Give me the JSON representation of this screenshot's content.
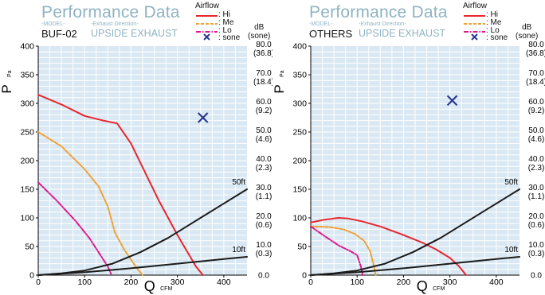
{
  "header": {
    "title": "Performance Data",
    "model_caption": "-MODEL-",
    "exhaust_caption": "-Exhaust Direction-",
    "exhaust_value": "UPSIDE EXHAUST",
    "airflow_title": "Airflow",
    "legend": [
      {
        "key": "hi",
        "label": ": Hi"
      },
      {
        "key": "me",
        "label": ": Me"
      },
      {
        "key": "lo",
        "label": ": Lo"
      },
      {
        "key": "sone",
        "label": ": sone"
      }
    ],
    "db_label": "dB",
    "sone_label": "(sone)"
  },
  "colors": {
    "hi": "#e8262d",
    "me": "#f0a030",
    "lo": "#e0188c",
    "duct": "#1a1a1a",
    "sone_marker": "#2b3990",
    "plot_bg": "#d9e8f3",
    "grid": "#ffffff",
    "title": "#8fb3c2"
  },
  "chart_data": [
    {
      "type": "line",
      "model": "BUF-02",
      "xlabel": "Q",
      "xunit": "CFM",
      "ylabel": "P",
      "yunit": "Pa",
      "xlim": [
        0,
        450
      ],
      "ylim": [
        0,
        400
      ],
      "x_ticks": [
        "0",
        "100",
        "200",
        "300",
        "400"
      ],
      "y_ticks": [
        "0",
        "50",
        "100",
        "150",
        "200",
        "250",
        "300",
        "350",
        "400"
      ],
      "right_ticks": [
        "0.0",
        "10.0\n(0.3)",
        "20.0\n(0.6)",
        "30.0\n(1.1)",
        "40.0\n(2.3)",
        "50.0\n(4.6)",
        "60.0\n(9.2)",
        "70.0\n(18.4)",
        "80.0\n(36.8)"
      ],
      "grid": true,
      "series": [
        {
          "name": "Hi",
          "key": "hi",
          "style": "solid",
          "x": [
            0,
            50,
            100,
            140,
            170,
            200,
            230,
            260,
            300,
            340,
            355
          ],
          "y": [
            315,
            298,
            278,
            270,
            265,
            230,
            180,
            130,
            70,
            15,
            0
          ]
        },
        {
          "name": "Me",
          "key": "me",
          "style": "dashed",
          "x": [
            0,
            50,
            100,
            130,
            150,
            165,
            185,
            210,
            225
          ],
          "y": [
            250,
            225,
            185,
            155,
            120,
            75,
            45,
            15,
            0
          ]
        },
        {
          "name": "Lo",
          "key": "lo",
          "style": "dashdot",
          "x": [
            0,
            40,
            80,
            110,
            130,
            150,
            158
          ],
          "y": [
            162,
            130,
            95,
            65,
            40,
            15,
            0
          ]
        },
        {
          "key": "duct",
          "style": "solid",
          "label": "50ft",
          "x": [
            0,
            50,
            100,
            160,
            220,
            280,
            330,
            380,
            450
          ],
          "y": [
            0,
            3,
            8,
            20,
            40,
            65,
            90,
            115,
            150
          ]
        },
        {
          "key": "duct",
          "style": "solid",
          "label": "10ft",
          "x": [
            0,
            100,
            200,
            300,
            400,
            450
          ],
          "y": [
            0,
            5,
            12,
            20,
            28,
            32
          ]
        }
      ],
      "sone_point": {
        "x": 355,
        "y": 275
      }
    },
    {
      "type": "line",
      "model": "OTHERS",
      "xlabel": "Q",
      "xunit": "CFM",
      "ylabel": "P",
      "yunit": "Pa",
      "xlim": [
        0,
        450
      ],
      "ylim": [
        0,
        400
      ],
      "x_ticks": [
        "0",
        "100",
        "200",
        "300",
        "400"
      ],
      "y_ticks": [
        "0",
        "50",
        "100",
        "150",
        "200",
        "250",
        "300",
        "350",
        "400"
      ],
      "right_ticks": [
        "0.0",
        "10.0\n(0.3)",
        "20.0\n(0.6)",
        "30.0\n(1.1)",
        "40.0\n(2.3)",
        "50.0\n(4.6)",
        "60.0\n(9.2)",
        "70.0\n(18.4)",
        "80.0\n(36.8)"
      ],
      "grid": true,
      "series": [
        {
          "name": "Hi",
          "key": "hi",
          "style": "solid",
          "x": [
            0,
            30,
            60,
            80,
            110,
            150,
            200,
            240,
            270,
            300,
            320,
            335
          ],
          "y": [
            92,
            97,
            100,
            99,
            94,
            85,
            70,
            57,
            45,
            30,
            15,
            0
          ]
        },
        {
          "name": "Me",
          "key": "me",
          "style": "dashed",
          "x": [
            0,
            40,
            70,
            95,
            115,
            128,
            135,
            140
          ],
          "y": [
            85,
            84,
            80,
            72,
            60,
            42,
            20,
            0
          ]
        },
        {
          "name": "Lo",
          "key": "lo",
          "style": "dashdot",
          "x": [
            0,
            30,
            60,
            85,
            100,
            108,
            112
          ],
          "y": [
            85,
            68,
            52,
            42,
            35,
            15,
            0
          ]
        },
        {
          "key": "duct",
          "style": "solid",
          "label": "50ft",
          "x": [
            0,
            50,
            100,
            160,
            220,
            280,
            330,
            380,
            450
          ],
          "y": [
            0,
            3,
            8,
            20,
            40,
            65,
            90,
            115,
            150
          ]
        },
        {
          "key": "duct",
          "style": "solid",
          "label": "10ft",
          "x": [
            0,
            100,
            200,
            300,
            400,
            450
          ],
          "y": [
            0,
            5,
            12,
            20,
            28,
            32
          ]
        }
      ],
      "sone_point": {
        "x": 305,
        "y": 305
      }
    }
  ]
}
